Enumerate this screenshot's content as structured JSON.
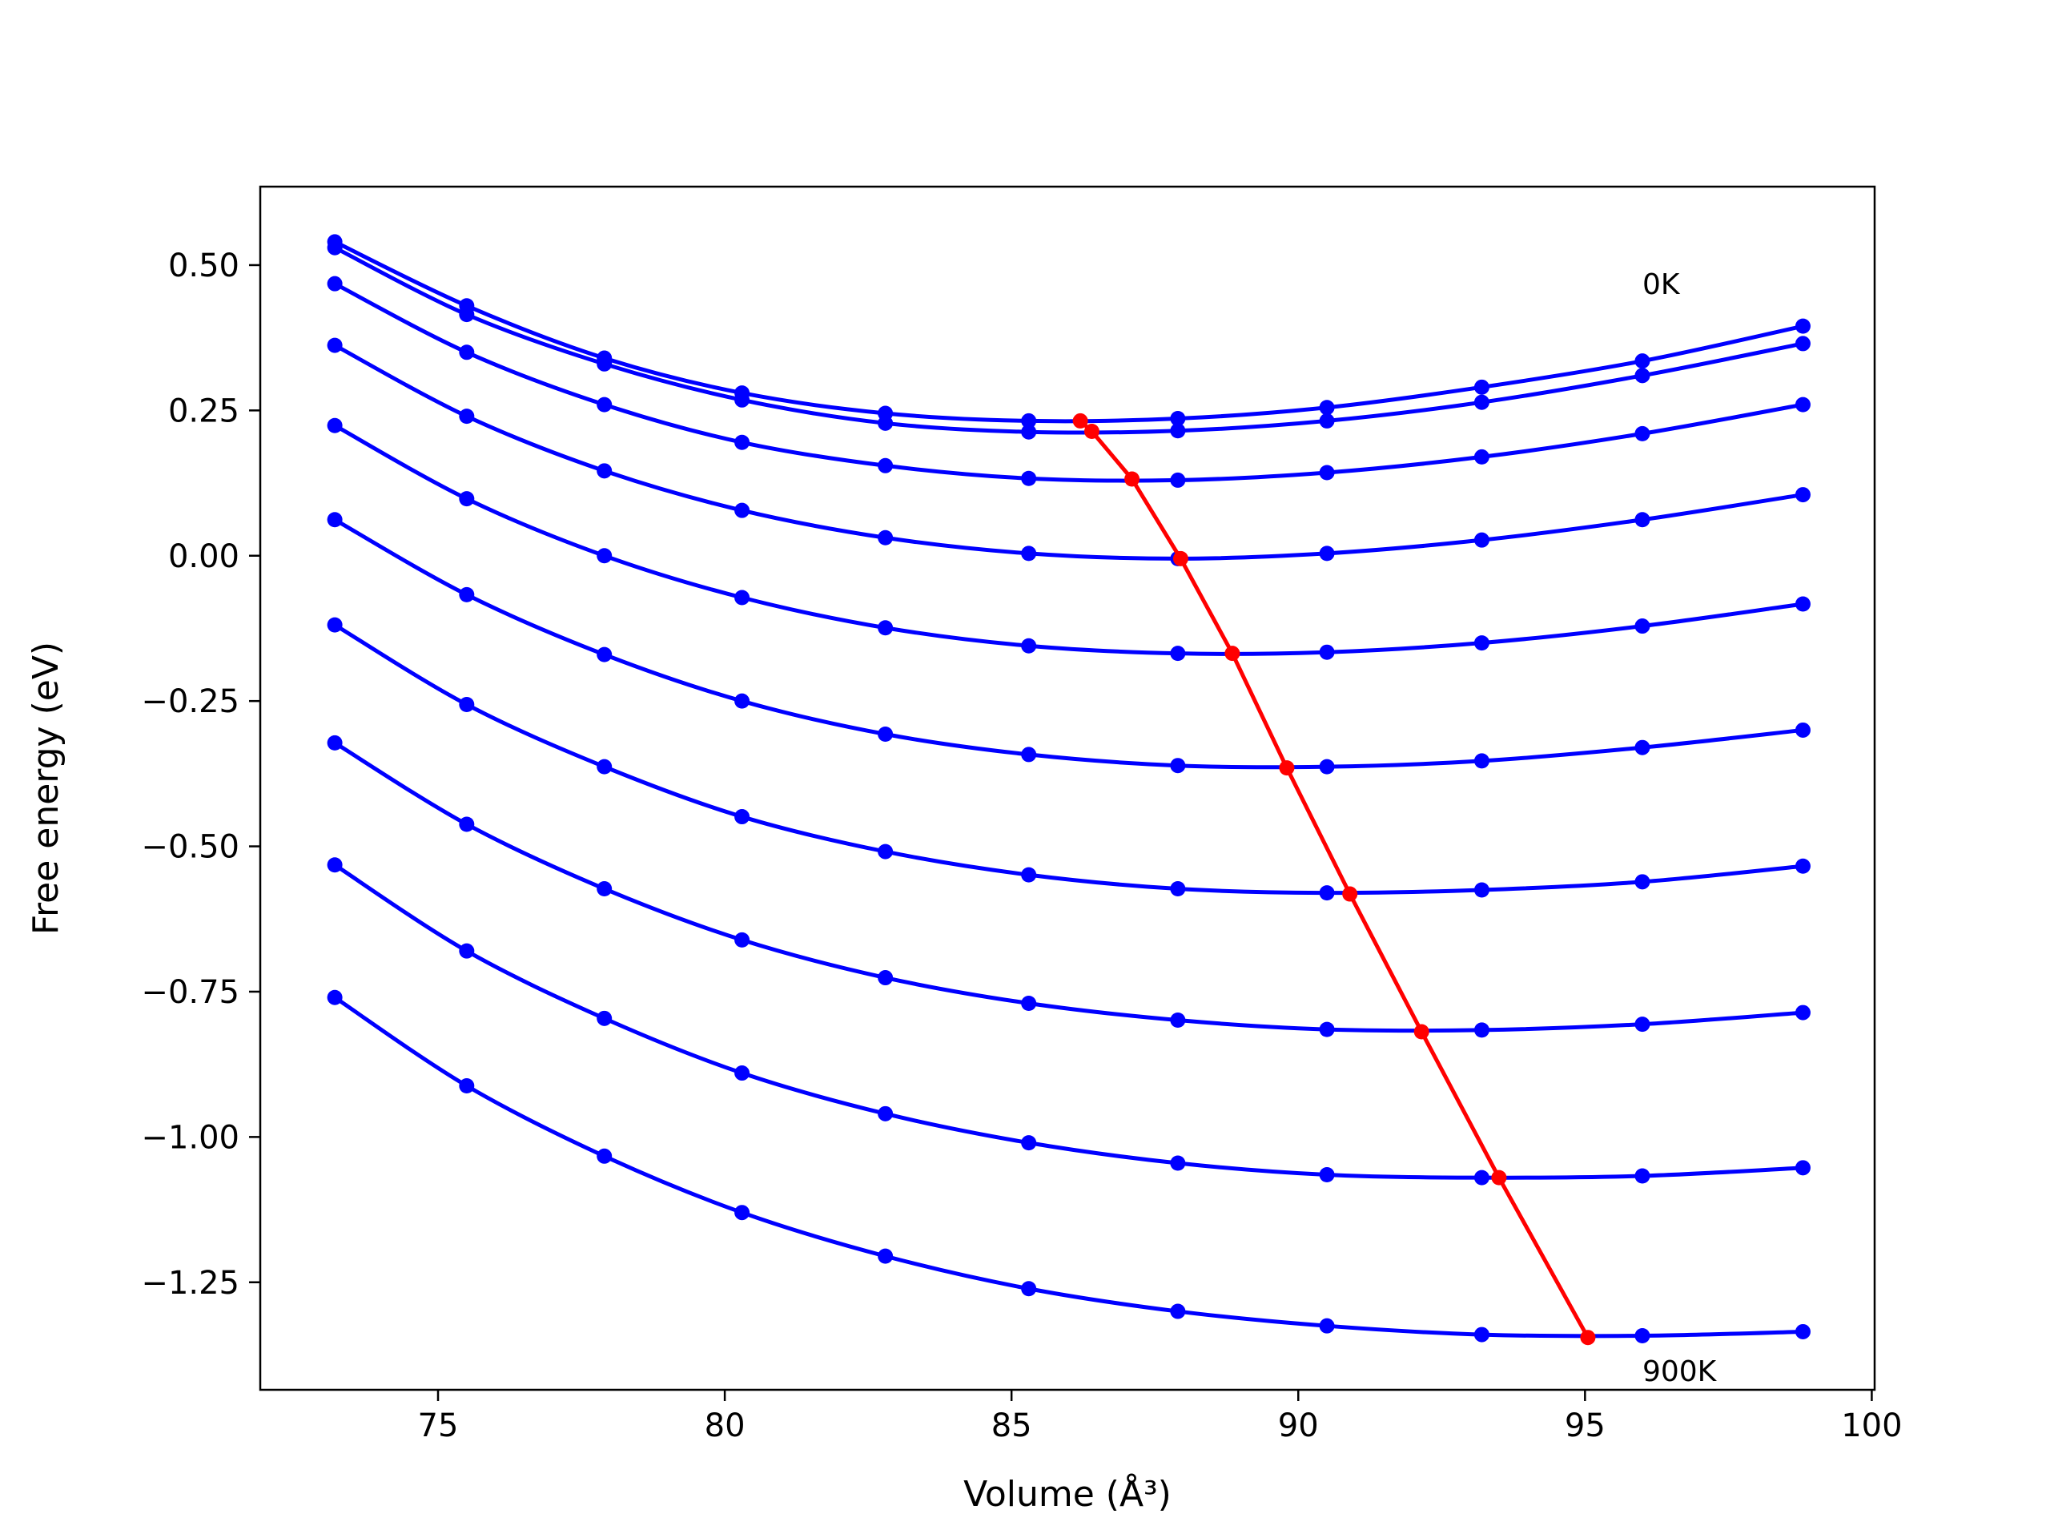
{
  "chart_data": {
    "type": "line",
    "xlabel": "Volume (Å³)",
    "ylabel": "Free energy (eV)",
    "xlim": [
      71.9,
      100.05
    ],
    "ylim": [
      -1.435,
      0.635
    ],
    "xticks": [
      75,
      80,
      85,
      90,
      95,
      100
    ],
    "xtick_labels": [
      "75",
      "80",
      "85",
      "90",
      "95",
      "100"
    ],
    "yticks": [
      -1.25,
      -1.0,
      -0.75,
      -0.5,
      -0.25,
      0.0,
      0.25,
      0.5
    ],
    "ytick_labels": [
      "−1.25",
      "−1.00",
      "−0.75",
      "−0.50",
      "−0.25",
      "0.00",
      "0.25",
      "0.50"
    ],
    "grid": false,
    "annotations": [
      {
        "text": "0K",
        "x": 96.0,
        "y": 0.45
      },
      {
        "text": "900K",
        "x": 96.0,
        "y": -1.42
      }
    ],
    "x": [
      73.2,
      75.5,
      77.9,
      80.3,
      82.8,
      85.3,
      87.9,
      90.5,
      93.2,
      96.0,
      98.8
    ],
    "series": [
      {
        "color": "#0000ff",
        "values": [
          0.54,
          0.43,
          0.34,
          0.28,
          0.245,
          0.232,
          0.236,
          0.255,
          0.29,
          0.335,
          0.395
        ]
      },
      {
        "color": "#0000ff",
        "values": [
          0.53,
          0.415,
          0.33,
          0.268,
          0.228,
          0.213,
          0.215,
          0.232,
          0.264,
          0.31,
          0.365
        ]
      },
      {
        "color": "#0000ff",
        "values": [
          0.468,
          0.35,
          0.26,
          0.195,
          0.155,
          0.133,
          0.13,
          0.143,
          0.17,
          0.21,
          0.26
        ]
      },
      {
        "color": "#0000ff",
        "values": [
          0.362,
          0.24,
          0.146,
          0.078,
          0.031,
          0.004,
          -0.005,
          0.004,
          0.027,
          0.062,
          0.105
        ]
      },
      {
        "color": "#0000ff",
        "values": [
          0.224,
          0.098,
          0.0,
          -0.072,
          -0.124,
          -0.155,
          -0.168,
          -0.166,
          -0.15,
          -0.121,
          -0.083
        ]
      },
      {
        "color": "#0000ff",
        "values": [
          0.062,
          -0.067,
          -0.17,
          -0.25,
          -0.307,
          -0.342,
          -0.361,
          -0.363,
          -0.353,
          -0.33,
          -0.3
        ]
      },
      {
        "color": "#0000ff",
        "values": [
          -0.119,
          -0.256,
          -0.363,
          -0.449,
          -0.509,
          -0.549,
          -0.573,
          -0.58,
          -0.575,
          -0.561,
          -0.534
        ]
      },
      {
        "color": "#0000ff",
        "values": [
          -0.322,
          -0.462,
          -0.573,
          -0.661,
          -0.726,
          -0.77,
          -0.799,
          -0.815,
          -0.816,
          -0.806,
          -0.786
        ]
      },
      {
        "color": "#0000ff",
        "values": [
          -0.532,
          -0.68,
          -0.796,
          -0.89,
          -0.96,
          -1.01,
          -1.045,
          -1.065,
          -1.07,
          -1.067,
          -1.053
        ]
      },
      {
        "color": "#0000ff",
        "values": [
          -0.76,
          -0.912,
          -1.033,
          -1.13,
          -1.205,
          -1.261,
          -1.3,
          -1.325,
          -1.34,
          -1.342,
          -1.335
        ]
      }
    ],
    "minimum_locus": {
      "color": "#ff0000",
      "x": [
        86.2,
        86.4,
        87.1,
        87.95,
        88.85,
        89.8,
        90.9,
        92.15,
        93.5,
        95.05
      ],
      "y": [
        0.232,
        0.214,
        0.132,
        -0.005,
        -0.168,
        -0.365,
        -0.582,
        -0.819,
        -1.07,
        -1.345
      ]
    }
  }
}
